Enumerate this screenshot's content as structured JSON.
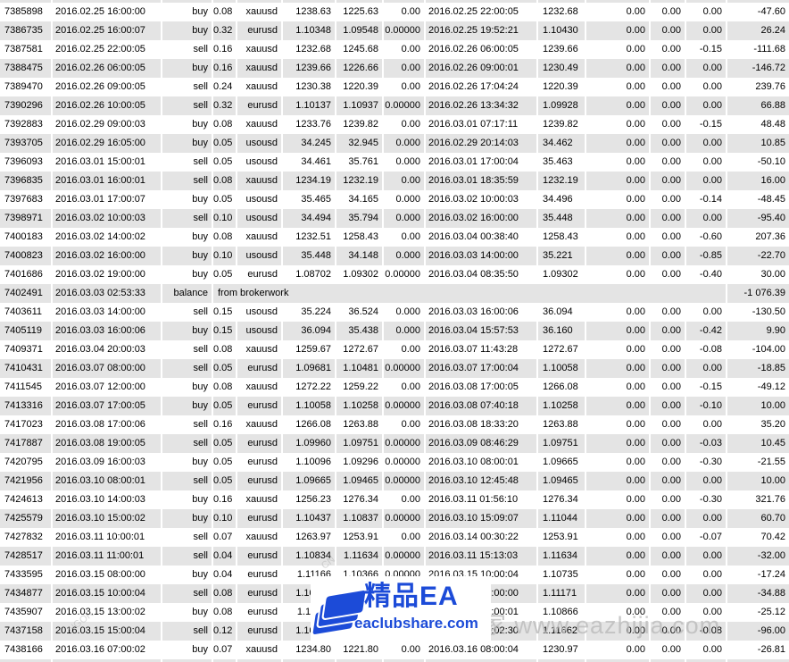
{
  "table": {
    "columns": [
      {
        "key": "order",
        "width": 59,
        "align": "al"
      },
      {
        "key": "open_time",
        "width": 123,
        "align": "al2"
      },
      {
        "key": "type",
        "width": 57,
        "align": "ar"
      },
      {
        "key": "size",
        "width": 27,
        "align": "ar"
      },
      {
        "key": "symbol",
        "width": 51,
        "align": "ar"
      },
      {
        "key": "open_price",
        "width": 60,
        "align": "ar"
      },
      {
        "key": "sl",
        "width": 53,
        "align": "ar"
      },
      {
        "key": "tp",
        "width": 47,
        "align": "ar"
      },
      {
        "key": "close_time",
        "width": 126,
        "align": "al2"
      },
      {
        "key": "close_price",
        "width": 54,
        "align": "al"
      },
      {
        "key": "commission",
        "width": 72,
        "align": "ar"
      },
      {
        "key": "taxes",
        "width": 40,
        "align": "ar"
      },
      {
        "key": "swap",
        "width": 46,
        "align": "ar"
      },
      {
        "key": "profit",
        "width": 69,
        "align": "ar"
      }
    ],
    "rows": [
      {
        "order": "7385898",
        "open_time": "2016.02.25 16:00:00",
        "type": "buy",
        "size": "0.08",
        "symbol": "xauusd",
        "open_price": "1238.63",
        "sl": "1225.63",
        "tp": "0.00",
        "close_time": "2016.02.25 22:00:05",
        "close_price": "1232.68",
        "commission": "0.00",
        "taxes": "0.00",
        "swap": "0.00",
        "profit": "-47.60"
      },
      {
        "order": "7386735",
        "open_time": "2016.02.25 16:00:07",
        "type": "buy",
        "size": "0.32",
        "symbol": "eurusd",
        "open_price": "1.10348",
        "sl": "1.09548",
        "tp": "0.00000",
        "close_time": "2016.02.25 19:52:21",
        "close_price": "1.10430",
        "commission": "0.00",
        "taxes": "0.00",
        "swap": "0.00",
        "profit": "26.24"
      },
      {
        "order": "7387581",
        "open_time": "2016.02.25 22:00:05",
        "type": "sell",
        "size": "0.16",
        "symbol": "xauusd",
        "open_price": "1232.68",
        "sl": "1245.68",
        "tp": "0.00",
        "close_time": "2016.02.26 06:00:05",
        "close_price": "1239.66",
        "commission": "0.00",
        "taxes": "0.00",
        "swap": "-0.15",
        "profit": "-111.68"
      },
      {
        "order": "7388475",
        "open_time": "2016.02.26 06:00:05",
        "type": "buy",
        "size": "0.16",
        "symbol": "xauusd",
        "open_price": "1239.66",
        "sl": "1226.66",
        "tp": "0.00",
        "close_time": "2016.02.26 09:00:01",
        "close_price": "1230.49",
        "commission": "0.00",
        "taxes": "0.00",
        "swap": "0.00",
        "profit": "-146.72"
      },
      {
        "order": "7389470",
        "open_time": "2016.02.26 09:00:05",
        "type": "sell",
        "size": "0.24",
        "symbol": "xauusd",
        "open_price": "1230.38",
        "sl": "1220.39",
        "tp": "0.00",
        "close_time": "2016.02.26 17:04:24",
        "close_price": "1220.39",
        "commission": "0.00",
        "taxes": "0.00",
        "swap": "0.00",
        "profit": "239.76"
      },
      {
        "order": "7390296",
        "open_time": "2016.02.26 10:00:05",
        "type": "sell",
        "size": "0.32",
        "symbol": "eurusd",
        "open_price": "1.10137",
        "sl": "1.10937",
        "tp": "0.00000",
        "close_time": "2016.02.26 13:34:32",
        "close_price": "1.09928",
        "commission": "0.00",
        "taxes": "0.00",
        "swap": "0.00",
        "profit": "66.88"
      },
      {
        "order": "7392883",
        "open_time": "2016.02.29 09:00:03",
        "type": "buy",
        "size": "0.08",
        "symbol": "xauusd",
        "open_price": "1233.76",
        "sl": "1239.82",
        "tp": "0.00",
        "close_time": "2016.03.01 07:17:11",
        "close_price": "1239.82",
        "commission": "0.00",
        "taxes": "0.00",
        "swap": "-0.15",
        "profit": "48.48"
      },
      {
        "order": "7393705",
        "open_time": "2016.02.29 16:05:00",
        "type": "buy",
        "size": "0.05",
        "symbol": "usousd",
        "open_price": "34.245",
        "sl": "32.945",
        "tp": "0.000",
        "close_time": "2016.02.29 20:14:03",
        "close_price": "34.462",
        "commission": "0.00",
        "taxes": "0.00",
        "swap": "0.00",
        "profit": "10.85"
      },
      {
        "order": "7396093",
        "open_time": "2016.03.01 15:00:01",
        "type": "sell",
        "size": "0.05",
        "symbol": "usousd",
        "open_price": "34.461",
        "sl": "35.761",
        "tp": "0.000",
        "close_time": "2016.03.01 17:00:04",
        "close_price": "35.463",
        "commission": "0.00",
        "taxes": "0.00",
        "swap": "0.00",
        "profit": "-50.10"
      },
      {
        "order": "7396835",
        "open_time": "2016.03.01 16:00:01",
        "type": "sell",
        "size": "0.08",
        "symbol": "xauusd",
        "open_price": "1234.19",
        "sl": "1232.19",
        "tp": "0.00",
        "close_time": "2016.03.01 18:35:59",
        "close_price": "1232.19",
        "commission": "0.00",
        "taxes": "0.00",
        "swap": "0.00",
        "profit": "16.00"
      },
      {
        "order": "7397683",
        "open_time": "2016.03.01 17:00:07",
        "type": "buy",
        "size": "0.05",
        "symbol": "usousd",
        "open_price": "35.465",
        "sl": "34.165",
        "tp": "0.000",
        "close_time": "2016.03.02 10:00:03",
        "close_price": "34.496",
        "commission": "0.00",
        "taxes": "0.00",
        "swap": "-0.14",
        "profit": "-48.45"
      },
      {
        "order": "7398971",
        "open_time": "2016.03.02 10:00:03",
        "type": "sell",
        "size": "0.10",
        "symbol": "usousd",
        "open_price": "34.494",
        "sl": "35.794",
        "tp": "0.000",
        "close_time": "2016.03.02 16:00:00",
        "close_price": "35.448",
        "commission": "0.00",
        "taxes": "0.00",
        "swap": "0.00",
        "profit": "-95.40"
      },
      {
        "order": "7400183",
        "open_time": "2016.03.02 14:00:02",
        "type": "buy",
        "size": "0.08",
        "symbol": "xauusd",
        "open_price": "1232.51",
        "sl": "1258.43",
        "tp": "0.00",
        "close_time": "2016.03.04 00:38:40",
        "close_price": "1258.43",
        "commission": "0.00",
        "taxes": "0.00",
        "swap": "-0.60",
        "profit": "207.36"
      },
      {
        "order": "7400823",
        "open_time": "2016.03.02 16:00:00",
        "type": "buy",
        "size": "0.10",
        "symbol": "usousd",
        "open_price": "35.448",
        "sl": "34.148",
        "tp": "0.000",
        "close_time": "2016.03.03 14:00:00",
        "close_price": "35.221",
        "commission": "0.00",
        "taxes": "0.00",
        "swap": "-0.85",
        "profit": "-22.70"
      },
      {
        "order": "7401686",
        "open_time": "2016.03.02 19:00:00",
        "type": "buy",
        "size": "0.05",
        "symbol": "eurusd",
        "open_price": "1.08702",
        "sl": "1.09302",
        "tp": "0.00000",
        "close_time": "2016.03.04 08:35:50",
        "close_price": "1.09302",
        "commission": "0.00",
        "taxes": "0.00",
        "swap": "-0.40",
        "profit": "30.00"
      },
      {
        "order": "7402491",
        "open_time": "2016.03.03 02:53:33",
        "type": "balance",
        "comment": "from brokerwork",
        "profit": "-1 076.39",
        "is_balance": true
      },
      {
        "order": "7403611",
        "open_time": "2016.03.03 14:00:00",
        "type": "sell",
        "size": "0.15",
        "symbol": "usousd",
        "open_price": "35.224",
        "sl": "36.524",
        "tp": "0.000",
        "close_time": "2016.03.03 16:00:06",
        "close_price": "36.094",
        "commission": "0.00",
        "taxes": "0.00",
        "swap": "0.00",
        "profit": "-130.50"
      },
      {
        "order": "7405119",
        "open_time": "2016.03.03 16:00:06",
        "type": "buy",
        "size": "0.15",
        "symbol": "usousd",
        "open_price": "36.094",
        "sl": "35.438",
        "tp": "0.000",
        "close_time": "2016.03.04 15:57:53",
        "close_price": "36.160",
        "commission": "0.00",
        "taxes": "0.00",
        "swap": "-0.42",
        "profit": "9.90"
      },
      {
        "order": "7409371",
        "open_time": "2016.03.04 20:00:03",
        "type": "sell",
        "size": "0.08",
        "symbol": "xauusd",
        "open_price": "1259.67",
        "sl": "1272.67",
        "tp": "0.00",
        "close_time": "2016.03.07 11:43:28",
        "close_price": "1272.67",
        "commission": "0.00",
        "taxes": "0.00",
        "swap": "-0.08",
        "profit": "-104.00"
      },
      {
        "order": "7410431",
        "open_time": "2016.03.07 08:00:00",
        "type": "sell",
        "size": "0.05",
        "symbol": "eurusd",
        "open_price": "1.09681",
        "sl": "1.10481",
        "tp": "0.00000",
        "close_time": "2016.03.07 17:00:04",
        "close_price": "1.10058",
        "commission": "0.00",
        "taxes": "0.00",
        "swap": "0.00",
        "profit": "-18.85"
      },
      {
        "order": "7411545",
        "open_time": "2016.03.07 12:00:00",
        "type": "buy",
        "size": "0.08",
        "symbol": "xauusd",
        "open_price": "1272.22",
        "sl": "1259.22",
        "tp": "0.00",
        "close_time": "2016.03.08 17:00:05",
        "close_price": "1266.08",
        "commission": "0.00",
        "taxes": "0.00",
        "swap": "-0.15",
        "profit": "-49.12"
      },
      {
        "order": "7413316",
        "open_time": "2016.03.07 17:00:05",
        "type": "buy",
        "size": "0.05",
        "symbol": "eurusd",
        "open_price": "1.10058",
        "sl": "1.10258",
        "tp": "0.00000",
        "close_time": "2016.03.08 07:40:18",
        "close_price": "1.10258",
        "commission": "0.00",
        "taxes": "0.00",
        "swap": "-0.10",
        "profit": "10.00"
      },
      {
        "order": "7417023",
        "open_time": "2016.03.08 17:00:06",
        "type": "sell",
        "size": "0.16",
        "symbol": "xauusd",
        "open_price": "1266.08",
        "sl": "1263.88",
        "tp": "0.00",
        "close_time": "2016.03.08 18:33:20",
        "close_price": "1263.88",
        "commission": "0.00",
        "taxes": "0.00",
        "swap": "0.00",
        "profit": "35.20"
      },
      {
        "order": "7417887",
        "open_time": "2016.03.08 19:00:05",
        "type": "sell",
        "size": "0.05",
        "symbol": "eurusd",
        "open_price": "1.09960",
        "sl": "1.09751",
        "tp": "0.00000",
        "close_time": "2016.03.09 08:46:29",
        "close_price": "1.09751",
        "commission": "0.00",
        "taxes": "0.00",
        "swap": "-0.03",
        "profit": "10.45"
      },
      {
        "order": "7420795",
        "open_time": "2016.03.09 16:00:03",
        "type": "buy",
        "size": "0.05",
        "symbol": "eurusd",
        "open_price": "1.10096",
        "sl": "1.09296",
        "tp": "0.00000",
        "close_time": "2016.03.10 08:00:01",
        "close_price": "1.09665",
        "commission": "0.00",
        "taxes": "0.00",
        "swap": "-0.30",
        "profit": "-21.55"
      },
      {
        "order": "7421956",
        "open_time": "2016.03.10 08:00:01",
        "type": "sell",
        "size": "0.05",
        "symbol": "eurusd",
        "open_price": "1.09665",
        "sl": "1.09465",
        "tp": "0.00000",
        "close_time": "2016.03.10 12:45:48",
        "close_price": "1.09465",
        "commission": "0.00",
        "taxes": "0.00",
        "swap": "0.00",
        "profit": "10.00"
      },
      {
        "order": "7424613",
        "open_time": "2016.03.10 14:00:03",
        "type": "buy",
        "size": "0.16",
        "symbol": "xauusd",
        "open_price": "1256.23",
        "sl": "1276.34",
        "tp": "0.00",
        "close_time": "2016.03.11 01:56:10",
        "close_price": "1276.34",
        "commission": "0.00",
        "taxes": "0.00",
        "swap": "-0.30",
        "profit": "321.76"
      },
      {
        "order": "7425579",
        "open_time": "2016.03.10 15:00:02",
        "type": "buy",
        "size": "0.10",
        "symbol": "eurusd",
        "open_price": "1.10437",
        "sl": "1.10837",
        "tp": "0.00000",
        "close_time": "2016.03.10 15:09:07",
        "close_price": "1.11044",
        "commission": "0.00",
        "taxes": "0.00",
        "swap": "0.00",
        "profit": "60.70"
      },
      {
        "order": "7427832",
        "open_time": "2016.03.11 10:00:01",
        "type": "sell",
        "size": "0.07",
        "symbol": "xauusd",
        "open_price": "1263.97",
        "sl": "1253.91",
        "tp": "0.00",
        "close_time": "2016.03.14 00:30:22",
        "close_price": "1253.91",
        "commission": "0.00",
        "taxes": "0.00",
        "swap": "-0.07",
        "profit": "70.42"
      },
      {
        "order": "7428517",
        "open_time": "2016.03.11 11:00:01",
        "type": "sell",
        "size": "0.04",
        "symbol": "eurusd",
        "open_price": "1.10834",
        "sl": "1.11634",
        "tp": "0.00000",
        "close_time": "2016.03.11 15:13:03",
        "close_price": "1.11634",
        "commission": "0.00",
        "taxes": "0.00",
        "swap": "0.00",
        "profit": "-32.00"
      },
      {
        "order": "7433595",
        "open_time": "2016.03.15 08:00:00",
        "type": "buy",
        "size": "0.04",
        "symbol": "eurusd",
        "open_price": "1.11166",
        "sl": "1.10366",
        "tp": "0.00000",
        "close_time": "2016.03.15 10:00:04",
        "close_price": "1.10735",
        "commission": "0.00",
        "taxes": "0.00",
        "swap": "0.00",
        "profit": "-17.24"
      },
      {
        "order": "7434877",
        "open_time": "2016.03.15 10:00:04",
        "type": "sell",
        "size": "0.08",
        "symbol": "eurusd",
        "open_price": "1.10735",
        "sl": "1.11535",
        "tp": "0.00000",
        "close_time": "2016.03.15 13:00:00",
        "close_price": "1.11171",
        "commission": "0.00",
        "taxes": "0.00",
        "swap": "0.00",
        "profit": "-34.88"
      },
      {
        "order": "7435907",
        "open_time": "2016.03.15 13:00:02",
        "type": "buy",
        "size": "0.08",
        "symbol": "eurusd",
        "open_price": "1.11180",
        "sl": "1.10380",
        "tp": "0.00000",
        "close_time": "2016.03.15 15:00:01",
        "close_price": "1.10866",
        "commission": "0.00",
        "taxes": "0.00",
        "swap": "0.00",
        "profit": "-25.12"
      },
      {
        "order": "7437158",
        "open_time": "2016.03.15 15:00:04",
        "type": "sell",
        "size": "0.12",
        "symbol": "eurusd",
        "open_price": "1.10862",
        "sl": "1.11662",
        "tp": "0.00000",
        "close_time": "2016.03.15 18:02:30",
        "close_price": "1.11662",
        "commission": "0.00",
        "taxes": "0.00",
        "swap": "-0.08",
        "profit": "-96.00"
      },
      {
        "order": "7438166",
        "open_time": "2016.03.16 07:00:02",
        "type": "buy",
        "size": "0.07",
        "symbol": "xauusd",
        "open_price": "1234.80",
        "sl": "1221.80",
        "tp": "0.00",
        "close_time": "2016.03.16 08:00:04",
        "close_price": "1230.97",
        "commission": "0.00",
        "taxes": "0.00",
        "swap": "0.00",
        "profit": "-26.81"
      }
    ]
  },
  "watermark": {
    "brand": "精品EA",
    "domain": "eaclubshare.com",
    "diagonal": "外汇EA之家 www.eazhijia.com",
    "fragments": [
      "CN",
      "NGOR"
    ]
  },
  "colors": {
    "row_alt": "#e4e4e4",
    "row_bg": "#ffffff",
    "text": "#000000",
    "watermark_blue": "#1c4bd8",
    "faint_watermark": "#bababa"
  }
}
